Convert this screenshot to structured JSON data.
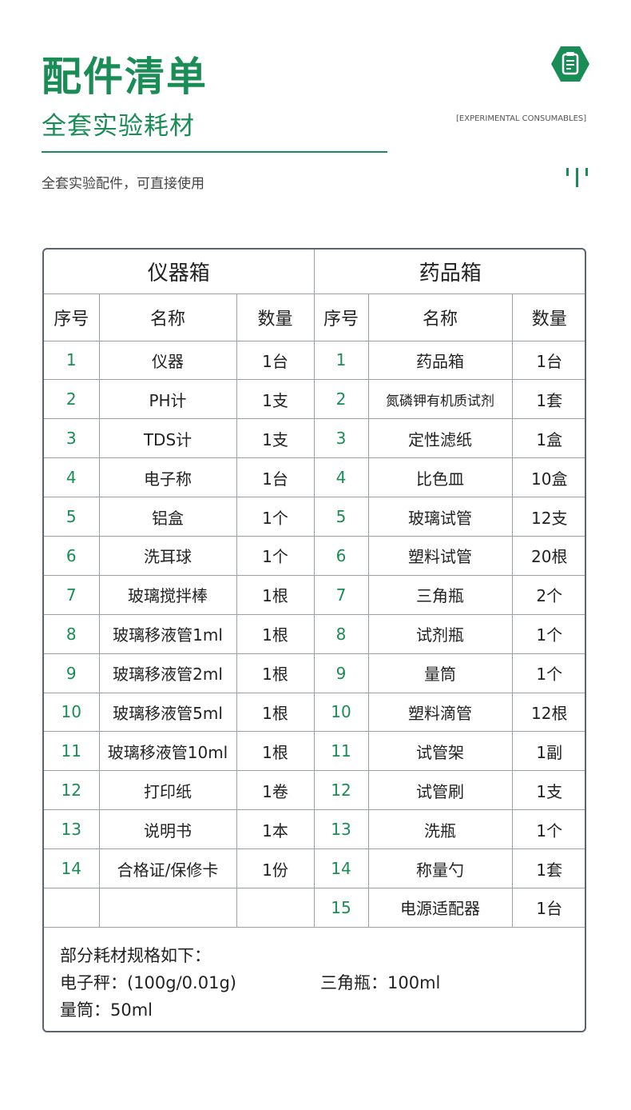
{
  "header": {
    "title": "配件清单",
    "subtitle": "全套实验耗材",
    "english": "[EXPERIMENTAL CONSUMABLES]",
    "description": "全套实验配件，可直接使用",
    "brand_color": "#1a8c56",
    "icon": "clipboard-icon"
  },
  "table": {
    "left_title": "仪器箱",
    "right_title": "药品箱",
    "columns": [
      "序号",
      "名称",
      "数量"
    ],
    "left_rows": [
      [
        "1",
        "仪器",
        "1台"
      ],
      [
        "2",
        "PH计",
        "1支"
      ],
      [
        "3",
        "TDS计",
        "1支"
      ],
      [
        "4",
        "电子称",
        "1台"
      ],
      [
        "5",
        "铝盒",
        "1个"
      ],
      [
        "6",
        "洗耳球",
        "1个"
      ],
      [
        "7",
        "玻璃搅拌棒",
        "1根"
      ],
      [
        "8",
        "玻璃移液管1ml",
        "1根"
      ],
      [
        "9",
        "玻璃移液管2ml",
        "1根"
      ],
      [
        "10",
        "玻璃移液管5ml",
        "1根"
      ],
      [
        "11",
        "玻璃移液管10ml",
        "1根"
      ],
      [
        "12",
        "打印纸",
        "1卷"
      ],
      [
        "13",
        "说明书",
        "1本"
      ],
      [
        "14",
        "合格证/保修卡",
        "1份"
      ],
      [
        "",
        "",
        ""
      ]
    ],
    "right_rows": [
      [
        "1",
        "药品箱",
        "1台"
      ],
      [
        "2",
        "氮磷钾有机质试剂",
        "1套"
      ],
      [
        "3",
        "定性滤纸",
        "1盒"
      ],
      [
        "4",
        "比色皿",
        "10盒"
      ],
      [
        "5",
        "玻璃试管",
        "12支"
      ],
      [
        "6",
        "塑料试管",
        "20根"
      ],
      [
        "7",
        "三角瓶",
        "2个"
      ],
      [
        "8",
        "试剂瓶",
        "1个"
      ],
      [
        "9",
        "量筒",
        "1个"
      ],
      [
        "10",
        "塑料滴管",
        "12根"
      ],
      [
        "11",
        "试管架",
        "1副"
      ],
      [
        "12",
        "试管刷",
        "1支"
      ],
      [
        "13",
        "洗瓶",
        "1个"
      ],
      [
        "14",
        "称量勺",
        "1套"
      ],
      [
        "15",
        "电源适配器",
        "1台"
      ]
    ]
  },
  "notes": {
    "heading": "部分耗材规格如下：",
    "scale": "电子秤：(100g/0.01g)",
    "flask": "三角瓶：100ml",
    "cylinder": "量筒：50ml"
  }
}
